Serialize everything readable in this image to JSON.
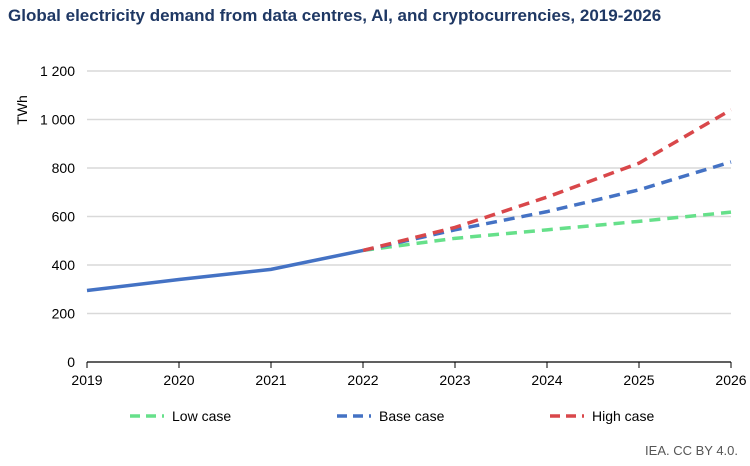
{
  "title": "Global electricity demand from data centres, AI, and cryptocurrencies, 2019-2026",
  "source": "IEA. CC BY 4.0.",
  "chart_data": {
    "type": "line",
    "title": "Global electricity demand from data centres, AI, and cryptocurrencies, 2019-2026",
    "ylabel": "TWh",
    "ylim": [
      0,
      1200
    ],
    "yticks": [
      0,
      200,
      400,
      600,
      800,
      1000,
      1200
    ],
    "ytick_labels": [
      "0",
      "200",
      "400",
      "600",
      "800",
      "1 000",
      "1 200"
    ],
    "x": [
      "2019",
      "2020",
      "2021",
      "2022",
      "2023",
      "2024",
      "2025",
      "2026"
    ],
    "grid": true,
    "legend": "bottom",
    "historical": {
      "color": "#4472c4",
      "values": [
        295,
        340,
        382,
        460
      ]
    },
    "series": [
      {
        "name": "Low case",
        "color": "#66e08a",
        "values": [
          null,
          null,
          null,
          460,
          510,
          545,
          580,
          618
        ]
      },
      {
        "name": "Base case",
        "color": "#4472c4",
        "values": [
          null,
          null,
          null,
          460,
          545,
          620,
          710,
          825
        ]
      },
      {
        "name": "High case",
        "color": "#d9474a",
        "values": [
          null,
          null,
          null,
          460,
          555,
          680,
          820,
          1040
        ]
      }
    ]
  }
}
